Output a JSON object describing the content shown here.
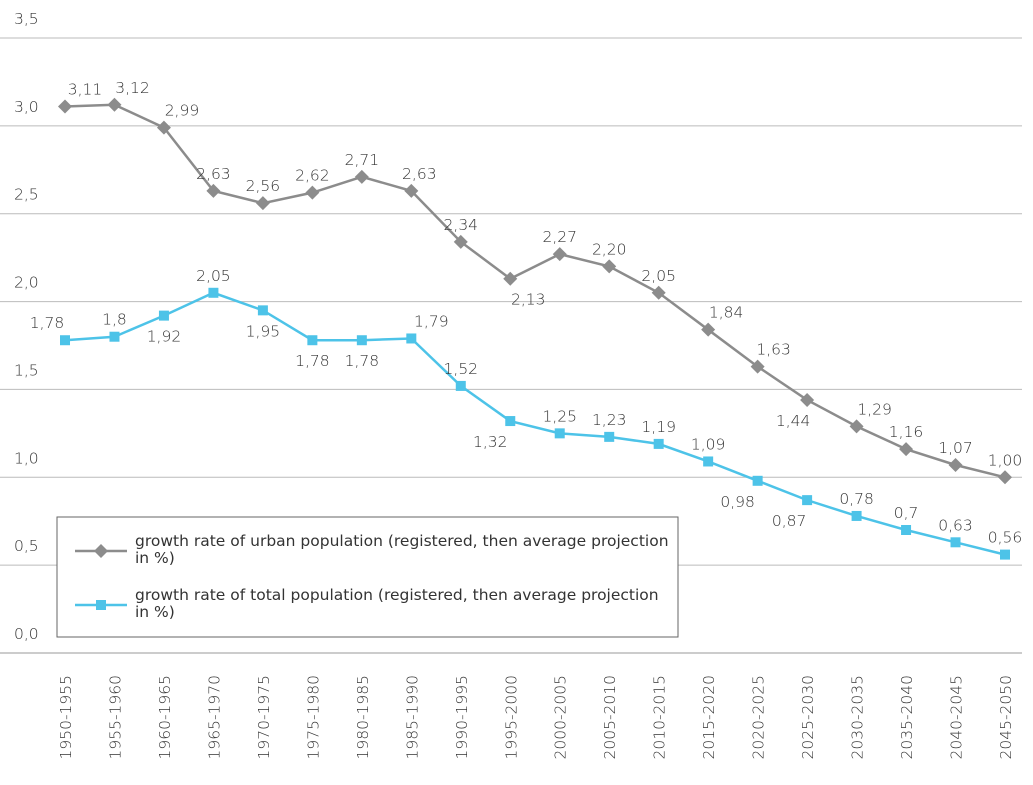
{
  "chart_data": {
    "type": "line",
    "categories": [
      "1950-1955",
      "1955-1960",
      "1960-1965",
      "1965-1970",
      "1970-1975",
      "1975-1980",
      "1980-1985",
      "1985-1990",
      "1990-1995",
      "1995-2000",
      "2000-2005",
      "2005-2010",
      "2010-2015",
      "2015-2020",
      "2020-2025",
      "2025-2030",
      "2030-2035",
      "2035-2040",
      "2040-2045",
      "2045-2050"
    ],
    "series": [
      {
        "name": "growth rate of urban population (registered, then average projection in %)",
        "color": "#8c8c8c",
        "marker": "diamond",
        "values": [
          3.11,
          3.12,
          2.99,
          2.63,
          2.56,
          2.62,
          2.71,
          2.63,
          2.34,
          2.13,
          2.27,
          2.2,
          2.05,
          1.84,
          1.63,
          1.44,
          1.29,
          1.16,
          1.07,
          1.0
        ],
        "value_labels": [
          "3,11",
          "3,12",
          "2,99",
          "2,63",
          "2,56",
          "2,62",
          "2,71",
          "2,63",
          "2,34",
          "2,13",
          "2,27",
          "2,20",
          "2,05",
          "1,84",
          "1,63",
          "1,44",
          "1,29",
          "1,16",
          "1,07",
          "1,00"
        ]
      },
      {
        "name": "growth rate of total population (registered, then average projection in %)",
        "color": "#4dc3e8",
        "marker": "square",
        "values": [
          1.78,
          1.8,
          1.92,
          2.05,
          1.95,
          1.78,
          1.78,
          1.79,
          1.52,
          1.32,
          1.25,
          1.23,
          1.19,
          1.09,
          0.98,
          0.87,
          0.78,
          0.7,
          0.63,
          0.56
        ],
        "value_labels": [
          "1,78",
          "1,8",
          "1,92",
          "2,05",
          "1,95",
          "1,78",
          "1,78",
          "1,79",
          "1,52",
          "1,32",
          "1,25",
          "1,23",
          "1,19",
          "1,09",
          "0,98",
          "0,87",
          "0,78",
          "0,7",
          "0,63",
          "0,56"
        ]
      }
    ],
    "ylim": [
      0,
      3.5
    ],
    "yticks": [
      {
        "value": 0,
        "label": "0,0"
      },
      {
        "value": 0.5,
        "label": "0,5"
      },
      {
        "value": 1,
        "label": "1,0"
      },
      {
        "value": 1.5,
        "label": "1,5"
      },
      {
        "value": 2,
        "label": "2,0"
      },
      {
        "value": 2.5,
        "label": "2,5"
      },
      {
        "value": 3,
        "label": "3,0"
      },
      {
        "value": 3.5,
        "label": "3,5"
      }
    ],
    "grid": true,
    "legend": "lower left"
  }
}
